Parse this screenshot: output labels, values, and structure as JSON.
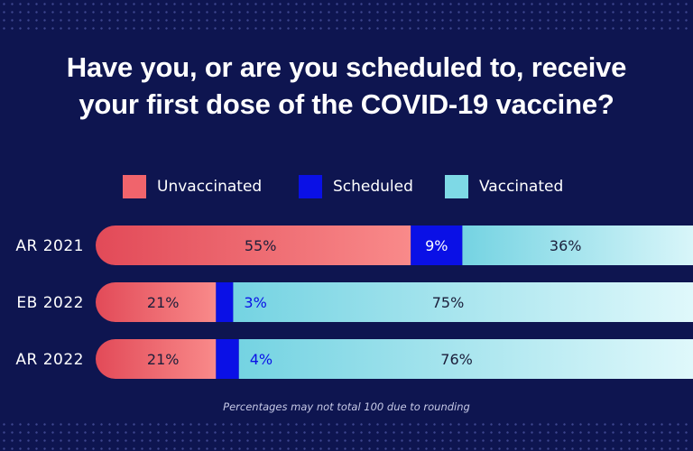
{
  "title_lines": [
    "Have you, or are you scheduled to, receive",
    "your first dose of the COVID-19 vaccine?"
  ],
  "footnote": "Percentages may not total 100 due to rounding",
  "colors": {
    "background": "#0e1550",
    "unvaccinated": "#f0646c",
    "scheduled": "#0a10e6",
    "vaccinated": "#7ed9e6",
    "label_dark": "#1b1e3a",
    "label_blue": "#0a10e6",
    "label_white": "#ffffff"
  },
  "chart_data": {
    "type": "bar",
    "orientation": "horizontal",
    "stacked": true,
    "title": "Have you, or are you scheduled to, receive your first dose of the COVID-19 vaccine?",
    "categories": [
      "AR 2021",
      "EB 2022",
      "AR 2022"
    ],
    "series": [
      {
        "name": "Unvaccinated",
        "values": [
          55,
          21,
          21
        ],
        "labels": [
          "55%",
          "21%",
          "21%"
        ]
      },
      {
        "name": "Scheduled",
        "values": [
          9,
          3,
          4
        ],
        "labels": [
          "9%",
          "3%",
          "4%"
        ]
      },
      {
        "name": "Vaccinated",
        "values": [
          36,
          75,
          76
        ],
        "labels": [
          "36%",
          "75%",
          "76%"
        ]
      }
    ],
    "legend_position": "top",
    "xlim": [
      0,
      100
    ],
    "grid": false
  }
}
